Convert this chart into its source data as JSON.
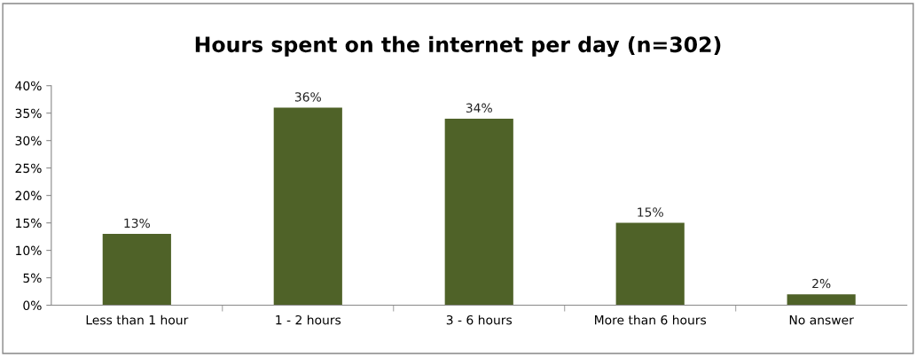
{
  "chart_data": {
    "type": "bar",
    "title": "Hours spent on the internet per day (n=302)",
    "categories": [
      "Less than 1 hour",
      "1 - 2 hours",
      "3 - 6 hours",
      "More than 6 hours",
      "No answer"
    ],
    "values": [
      13,
      36,
      34,
      15,
      2
    ],
    "value_labels": [
      "13%",
      "36%",
      "34%",
      "15%",
      "2%"
    ],
    "color": "#4f6228",
    "ylim": [
      0,
      40
    ],
    "yticks": [
      {
        "value": 0,
        "label": "0%"
      },
      {
        "value": 5,
        "label": "5%"
      },
      {
        "value": 10,
        "label": "10%"
      },
      {
        "value": 15,
        "label": "15%"
      },
      {
        "value": 20,
        "label": "20%"
      },
      {
        "value": 25,
        "label": "25%"
      },
      {
        "value": 30,
        "label": "30%"
      },
      {
        "value": 35,
        "label": "35%"
      },
      {
        "value": 40,
        "label": "40%"
      }
    ],
    "grid": false,
    "legend": false
  }
}
